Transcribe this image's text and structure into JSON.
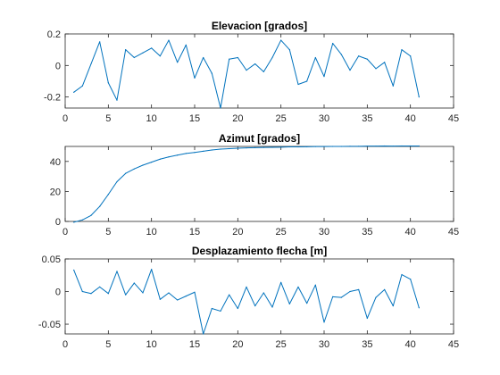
{
  "chart_data": [
    {
      "type": "line",
      "title": "Elevacion [grados]",
      "xlabel": "",
      "ylabel": "",
      "xlim": [
        0,
        45
      ],
      "ylim": [
        -0.27,
        0.2
      ],
      "xticks": [
        0,
        5,
        10,
        15,
        20,
        25,
        30,
        35,
        40,
        45
      ],
      "yticks": [
        -0.2,
        0,
        0.2
      ],
      "ytick_labels": [
        "-0.2",
        "0",
        "0.2"
      ],
      "grid": false,
      "color": "#0072BD",
      "series": [
        {
          "x": [
            1,
            2,
            3,
            4,
            5,
            6,
            7,
            8,
            9,
            10,
            11,
            12,
            13,
            14,
            15,
            16,
            17,
            18,
            19,
            20,
            21,
            22,
            23,
            24,
            25,
            26,
            27,
            28,
            29,
            30,
            31,
            32,
            33,
            34,
            35,
            36,
            37,
            38,
            39,
            40,
            41
          ],
          "values": [
            -0.17,
            -0.13,
            0.01,
            0.15,
            -0.11,
            -0.22,
            0.1,
            0.05,
            0.08,
            0.11,
            0.06,
            0.16,
            0.02,
            0.13,
            -0.08,
            0.05,
            -0.05,
            -0.27,
            0.04,
            0.05,
            -0.03,
            0.01,
            -0.04,
            0.05,
            0.16,
            0.1,
            -0.12,
            -0.1,
            0.05,
            -0.07,
            0.14,
            0.07,
            -0.03,
            0.06,
            0.04,
            -0.02,
            0.02,
            -0.13,
            0.1,
            0.06,
            -0.2
          ]
        }
      ]
    },
    {
      "type": "line",
      "title": "Azimut [grados]",
      "xlabel": "",
      "ylabel": "",
      "xlim": [
        0,
        45
      ],
      "ylim": [
        0,
        50
      ],
      "xticks": [
        0,
        5,
        10,
        15,
        20,
        25,
        30,
        35,
        40,
        45
      ],
      "yticks": [
        0,
        20,
        40
      ],
      "ytick_labels": [
        "0",
        "20",
        "40"
      ],
      "grid": false,
      "color": "#0072BD",
      "series": [
        {
          "x": [
            1,
            2,
            3,
            4,
            5,
            6,
            7,
            8,
            9,
            10,
            11,
            12,
            13,
            14,
            15,
            16,
            17,
            18,
            19,
            20,
            21,
            22,
            23,
            24,
            25,
            26,
            27,
            28,
            29,
            30,
            31,
            32,
            33,
            34,
            35,
            36,
            37,
            38,
            39,
            40,
            41
          ],
          "values": [
            -0.5,
            1.0,
            4.0,
            10.0,
            18.0,
            26.5,
            32.0,
            35.0,
            37.5,
            39.5,
            41.5,
            43.0,
            44.2,
            45.3,
            46.0,
            46.8,
            47.6,
            48.2,
            48.5,
            48.8,
            49.0,
            49.2,
            49.3,
            49.4,
            49.5,
            49.7,
            49.7,
            49.8,
            49.9,
            49.9,
            50.0,
            50.0,
            50.1,
            50.1,
            50.2,
            50.2,
            50.3,
            50.2,
            50.3,
            50.3,
            50.3
          ]
        }
      ]
    },
    {
      "type": "line",
      "title": "Desplazamiento flecha [m]",
      "xlabel": "",
      "ylabel": "",
      "xlim": [
        0,
        45
      ],
      "ylim": [
        -0.065,
        0.05
      ],
      "xticks": [
        0,
        5,
        10,
        15,
        20,
        25,
        30,
        35,
        40,
        45
      ],
      "yticks": [
        -0.05,
        0,
        0.05
      ],
      "ytick_labels": [
        "-0.05",
        "0",
        "0.05"
      ],
      "grid": false,
      "color": "#0072BD",
      "series": [
        {
          "x": [
            1,
            2,
            3,
            4,
            5,
            6,
            7,
            8,
            9,
            10,
            11,
            12,
            13,
            14,
            15,
            16,
            17,
            18,
            19,
            20,
            21,
            22,
            23,
            24,
            25,
            26,
            27,
            28,
            29,
            30,
            31,
            32,
            33,
            34,
            35,
            36,
            37,
            38,
            39,
            40,
            41
          ],
          "values": [
            0.033,
            0.0,
            -0.003,
            0.007,
            -0.003,
            0.031,
            -0.005,
            0.013,
            -0.002,
            0.034,
            -0.012,
            -0.002,
            -0.013,
            -0.007,
            -0.001,
            -0.065,
            -0.026,
            -0.03,
            -0.005,
            -0.026,
            0.007,
            -0.022,
            -0.002,
            -0.024,
            0.014,
            -0.019,
            0.007,
            -0.018,
            0.01,
            -0.047,
            -0.008,
            -0.009,
            0.0,
            0.003,
            -0.041,
            -0.009,
            0.003,
            -0.022,
            0.026,
            0.019,
            -0.025
          ]
        }
      ]
    }
  ]
}
